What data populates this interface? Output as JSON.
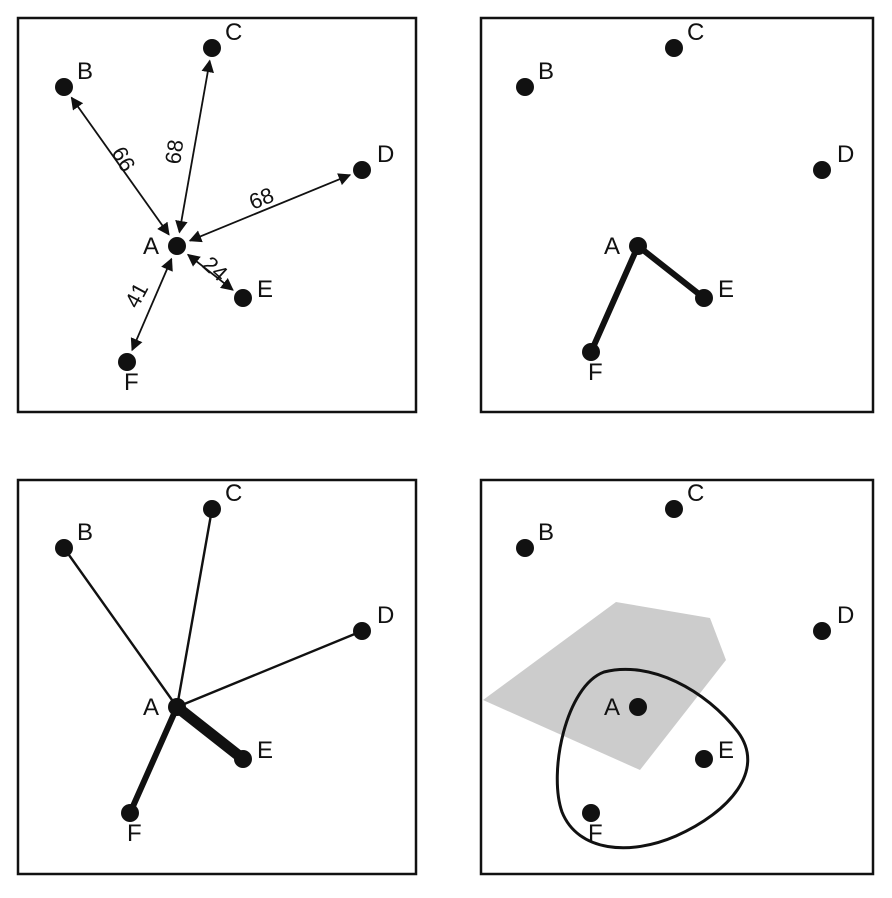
{
  "colors": {
    "ink": "#111111",
    "background": "#ffffff",
    "shaded_region": "#cccccc"
  },
  "panels": [
    {
      "id": "top-left",
      "type": "weighted-distances",
      "nodes": [
        {
          "id": "A",
          "label": "A"
        },
        {
          "id": "B",
          "label": "B"
        },
        {
          "id": "C",
          "label": "C"
        },
        {
          "id": "D",
          "label": "D"
        },
        {
          "id": "E",
          "label": "E"
        },
        {
          "id": "F",
          "label": "F"
        }
      ],
      "edges": [
        {
          "from": "A",
          "to": "B",
          "label": "66"
        },
        {
          "from": "A",
          "to": "C",
          "label": "68"
        },
        {
          "from": "A",
          "to": "D",
          "label": "68"
        },
        {
          "from": "A",
          "to": "E",
          "label": "24"
        },
        {
          "from": "A",
          "to": "F",
          "label": "41"
        }
      ]
    },
    {
      "id": "top-right",
      "type": "nearest-neighbours",
      "nodes": [
        {
          "id": "A",
          "label": "A"
        },
        {
          "id": "B",
          "label": "B"
        },
        {
          "id": "C",
          "label": "C"
        },
        {
          "id": "D",
          "label": "D"
        },
        {
          "id": "E",
          "label": "E"
        },
        {
          "id": "F",
          "label": "F"
        }
      ],
      "edges": [
        {
          "from": "A",
          "to": "E",
          "weight": "thick"
        },
        {
          "from": "A",
          "to": "F",
          "weight": "thick"
        }
      ]
    },
    {
      "id": "bottom-left",
      "type": "weighted-links",
      "nodes": [
        {
          "id": "A",
          "label": "A"
        },
        {
          "id": "B",
          "label": "B"
        },
        {
          "id": "C",
          "label": "C"
        },
        {
          "id": "D",
          "label": "D"
        },
        {
          "id": "E",
          "label": "E"
        },
        {
          "id": "F",
          "label": "F"
        }
      ],
      "edges": [
        {
          "from": "A",
          "to": "B",
          "weight": "thin"
        },
        {
          "from": "A",
          "to": "C",
          "weight": "thin"
        },
        {
          "from": "A",
          "to": "D",
          "weight": "thin"
        },
        {
          "from": "A",
          "to": "E",
          "weight": "heavy"
        },
        {
          "from": "A",
          "to": "F",
          "weight": "medium"
        }
      ]
    },
    {
      "id": "bottom-right",
      "type": "neighbourhood-region",
      "nodes": [
        {
          "id": "A",
          "label": "A"
        },
        {
          "id": "B",
          "label": "B"
        },
        {
          "id": "C",
          "label": "C"
        },
        {
          "id": "D",
          "label": "D"
        },
        {
          "id": "E",
          "label": "E"
        },
        {
          "id": "F",
          "label": "F"
        }
      ],
      "regions": [
        {
          "id": "shaded-area",
          "style": "filled-gray"
        },
        {
          "id": "enclosing-loop",
          "style": "outline",
          "contains": [
            "A",
            "E",
            "F"
          ]
        }
      ]
    }
  ]
}
